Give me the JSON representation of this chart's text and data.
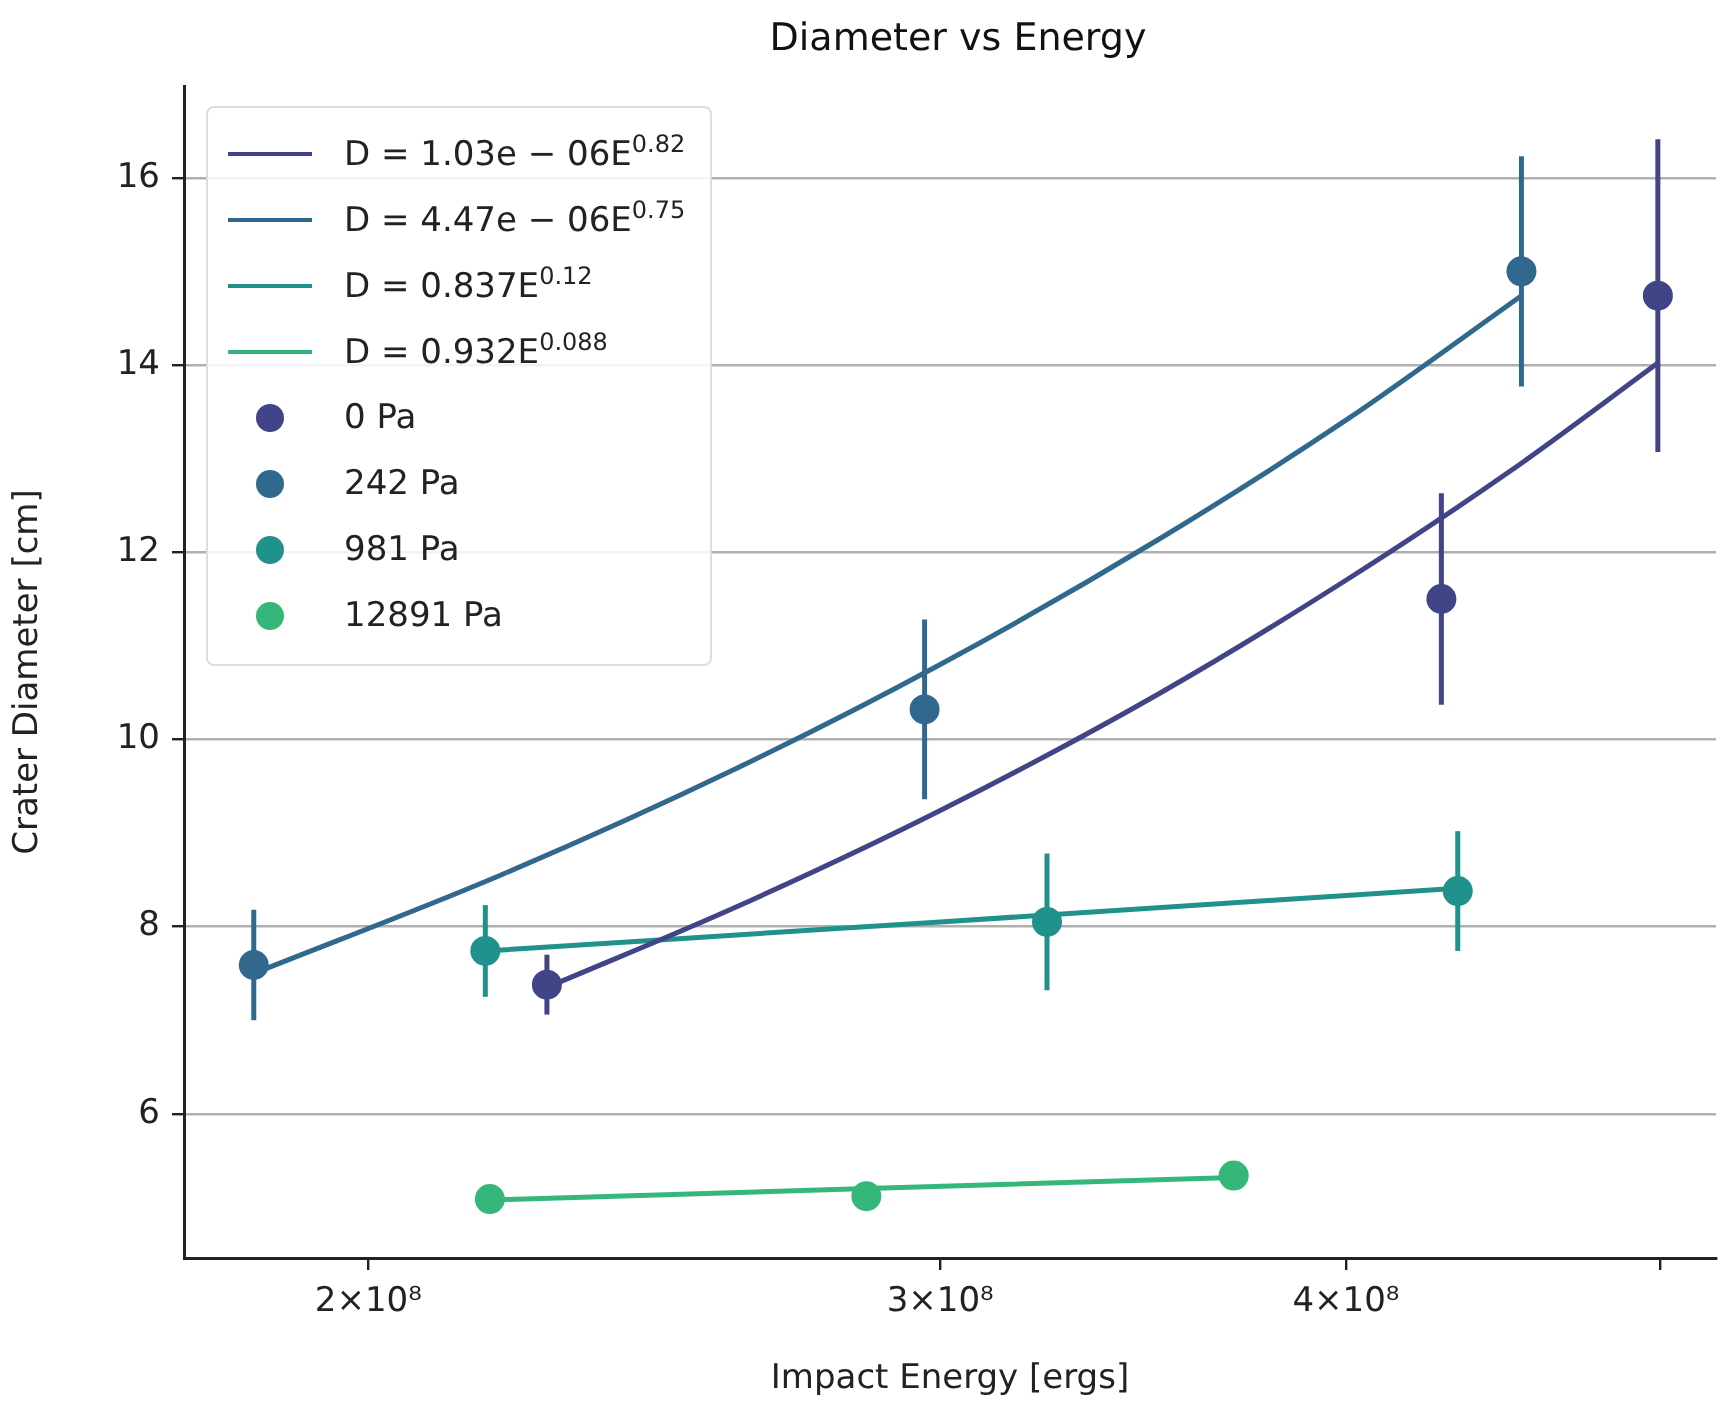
{
  "chart_data": {
    "type": "scatter",
    "title": "Diameter vs Energy",
    "xlabel": "Impact Energy [ergs]",
    "ylabel": "Crater Diameter [cm]",
    "log": "x",
    "grid": "y",
    "legend": "top left",
    "marker": "circle",
    "xlim": [
      175500000,
      520000000
    ],
    "xticks": [
      {
        "value": 200000000,
        "label": "2×10⁸"
      },
      {
        "value": 300000000,
        "label": "3×10⁸"
      },
      {
        "value": 400000000,
        "label": "4×10⁸"
      },
      {
        "value": 500000000,
        "label": null
      }
    ],
    "ylim": [
      4.46,
      16.98
    ],
    "yticks": [
      6,
      8,
      10,
      12,
      14,
      16
    ],
    "series": [
      {
        "type": "line",
        "marker": "none",
        "name": "D = 1.03e − 06E$^{0.82}$",
        "color": "#414487",
        "x": [
          227000000,
          260000000,
          300000000,
          350000000,
          400000000,
          450000000,
          499000000
        ],
        "values": [
          7.35,
          8.22,
          9.24,
          10.48,
          11.7,
          12.88,
          14.02
        ]
      },
      {
        "type": "line",
        "marker": "none",
        "name": "D = 4.47e − 06E$^{0.75}$",
        "color": "#31688e",
        "x": [
          184400000,
          220000000,
          260000000,
          300000000,
          350000000,
          400000000,
          453000000
        ],
        "values": [
          7.5,
          8.56,
          9.7,
          10.8,
          12.13,
          13.41,
          14.74
        ]
      },
      {
        "type": "line",
        "marker": "none",
        "name": "D = 0.837E$^{0.12}$",
        "color": "#21918c",
        "x": [
          217300000,
          300000000,
          433000000
        ],
        "values": [
          7.74,
          8.05,
          8.41
        ]
      },
      {
        "type": "line",
        "marker": "none",
        "name": "D = 0.932E$^{0.088}$",
        "color": "#35b779",
        "x": [
          218000000,
          369400000
        ],
        "values": [
          5.08,
          5.32
        ]
      },
      {
        "type": "scatter",
        "name": "0 Pa",
        "color": "#414487",
        "x": [
          227000000,
          428000000,
          499000000
        ],
        "values": [
          7.38,
          11.5,
          14.74
        ],
        "errors": [
          0.32,
          1.13,
          1.67
        ]
      },
      {
        "type": "scatter",
        "name": "242 Pa",
        "color": "#31688e",
        "x": [
          184400000,
          296700000,
          453000000
        ],
        "values": [
          7.59,
          10.32,
          15.0
        ],
        "errors": [
          0.59,
          0.96,
          1.23
        ]
      },
      {
        "type": "scatter",
        "name": "981 Pa",
        "color": "#21918c",
        "x": [
          217300000,
          323600000,
          433000000
        ],
        "values": [
          7.74,
          8.05,
          8.38
        ],
        "errors": [
          0.49,
          0.73,
          0.64
        ]
      },
      {
        "type": "scatter",
        "name": "12891 Pa",
        "color": "#35b779",
        "x": [
          218000000,
          284700000,
          369400000
        ],
        "values": [
          5.09,
          5.12,
          5.34
        ]
      }
    ]
  }
}
